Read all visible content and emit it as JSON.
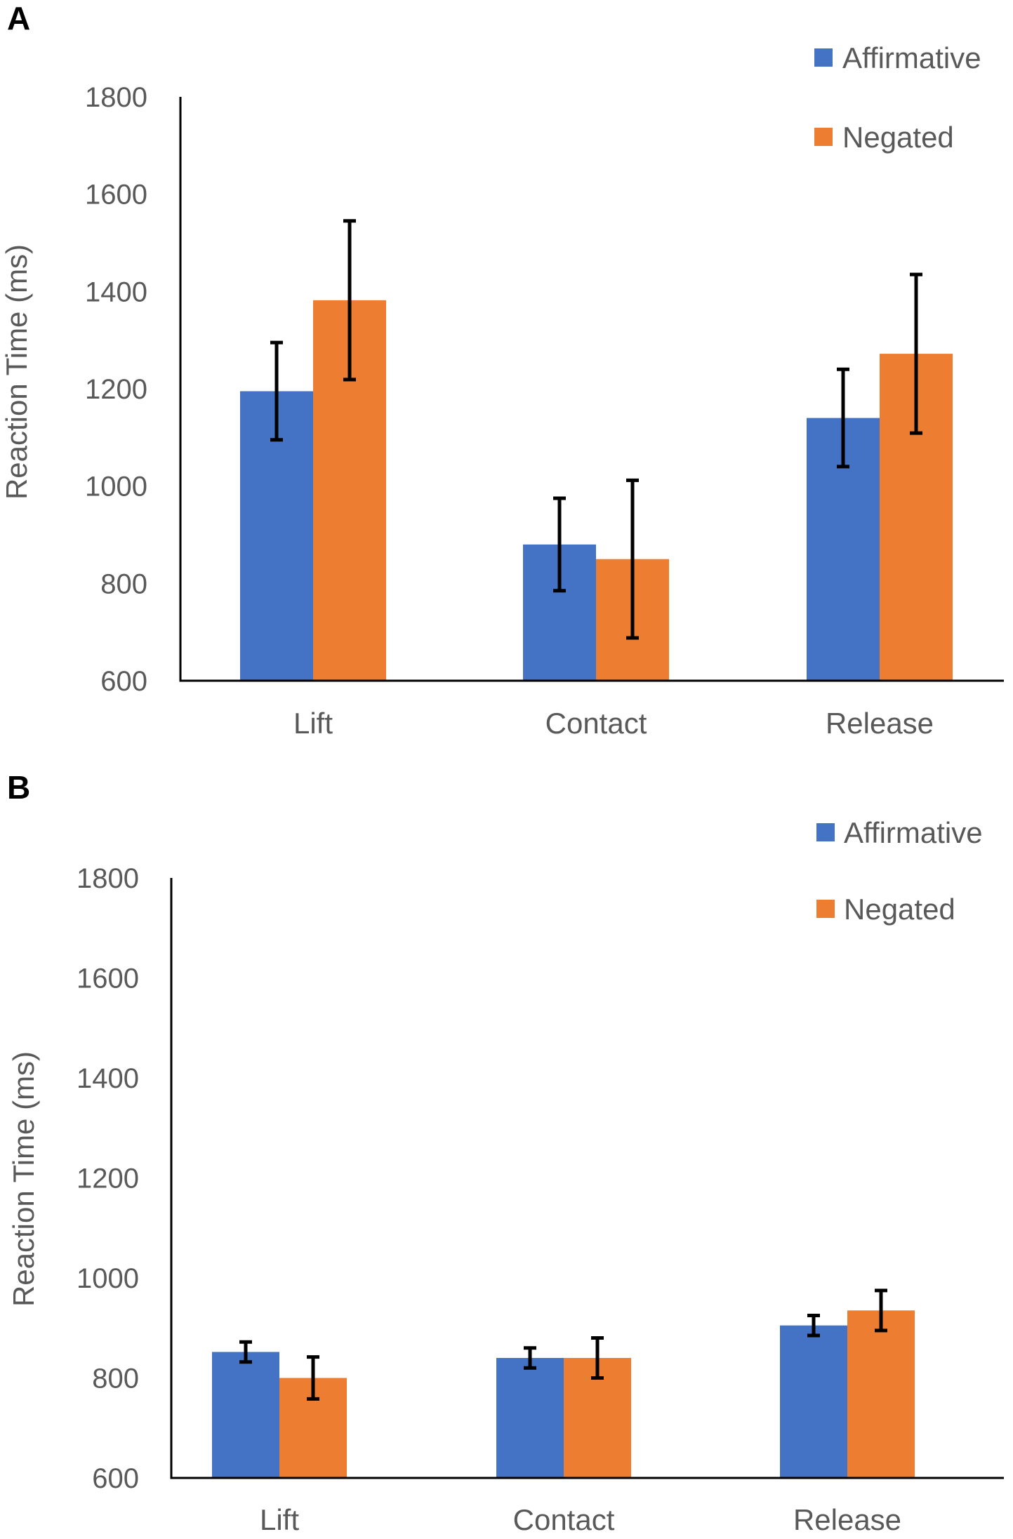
{
  "chart_data": [
    {
      "panel": "A",
      "type": "bar",
      "ylabel": "Reaction Time (ms)",
      "xlabel": "",
      "ylim": [
        600,
        1800
      ],
      "yticks": [
        600,
        800,
        1000,
        1200,
        1400,
        1600,
        1800
      ],
      "grid": false,
      "legend": "top-right",
      "categories": [
        "Lift",
        "Contact",
        "Release"
      ],
      "series": [
        {
          "name": "Affirmative",
          "color": "#4472C4",
          "values": [
            1195,
            880,
            1140
          ],
          "errors": [
            100,
            95,
            100
          ]
        },
        {
          "name": "Negated",
          "color": "#ED7D31",
          "values": [
            1382,
            850,
            1272
          ],
          "errors": [
            163,
            162,
            163
          ]
        }
      ]
    },
    {
      "panel": "B",
      "type": "bar",
      "ylabel": "Reaction Time (ms)",
      "xlabel": "",
      "ylim": [
        600,
        1800
      ],
      "yticks": [
        600,
        800,
        1000,
        1200,
        1400,
        1600,
        1800
      ],
      "grid": false,
      "legend": "top-right",
      "categories": [
        "Lift",
        "Contact",
        "Release"
      ],
      "series": [
        {
          "name": "Affirmative",
          "color": "#4472C4",
          "values": [
            852,
            840,
            905
          ],
          "errors": [
            20,
            20,
            20
          ]
        },
        {
          "name": "Negated",
          "color": "#ED7D31",
          "values": [
            800,
            840,
            935
          ],
          "errors": [
            42,
            40,
            40
          ]
        }
      ]
    }
  ]
}
